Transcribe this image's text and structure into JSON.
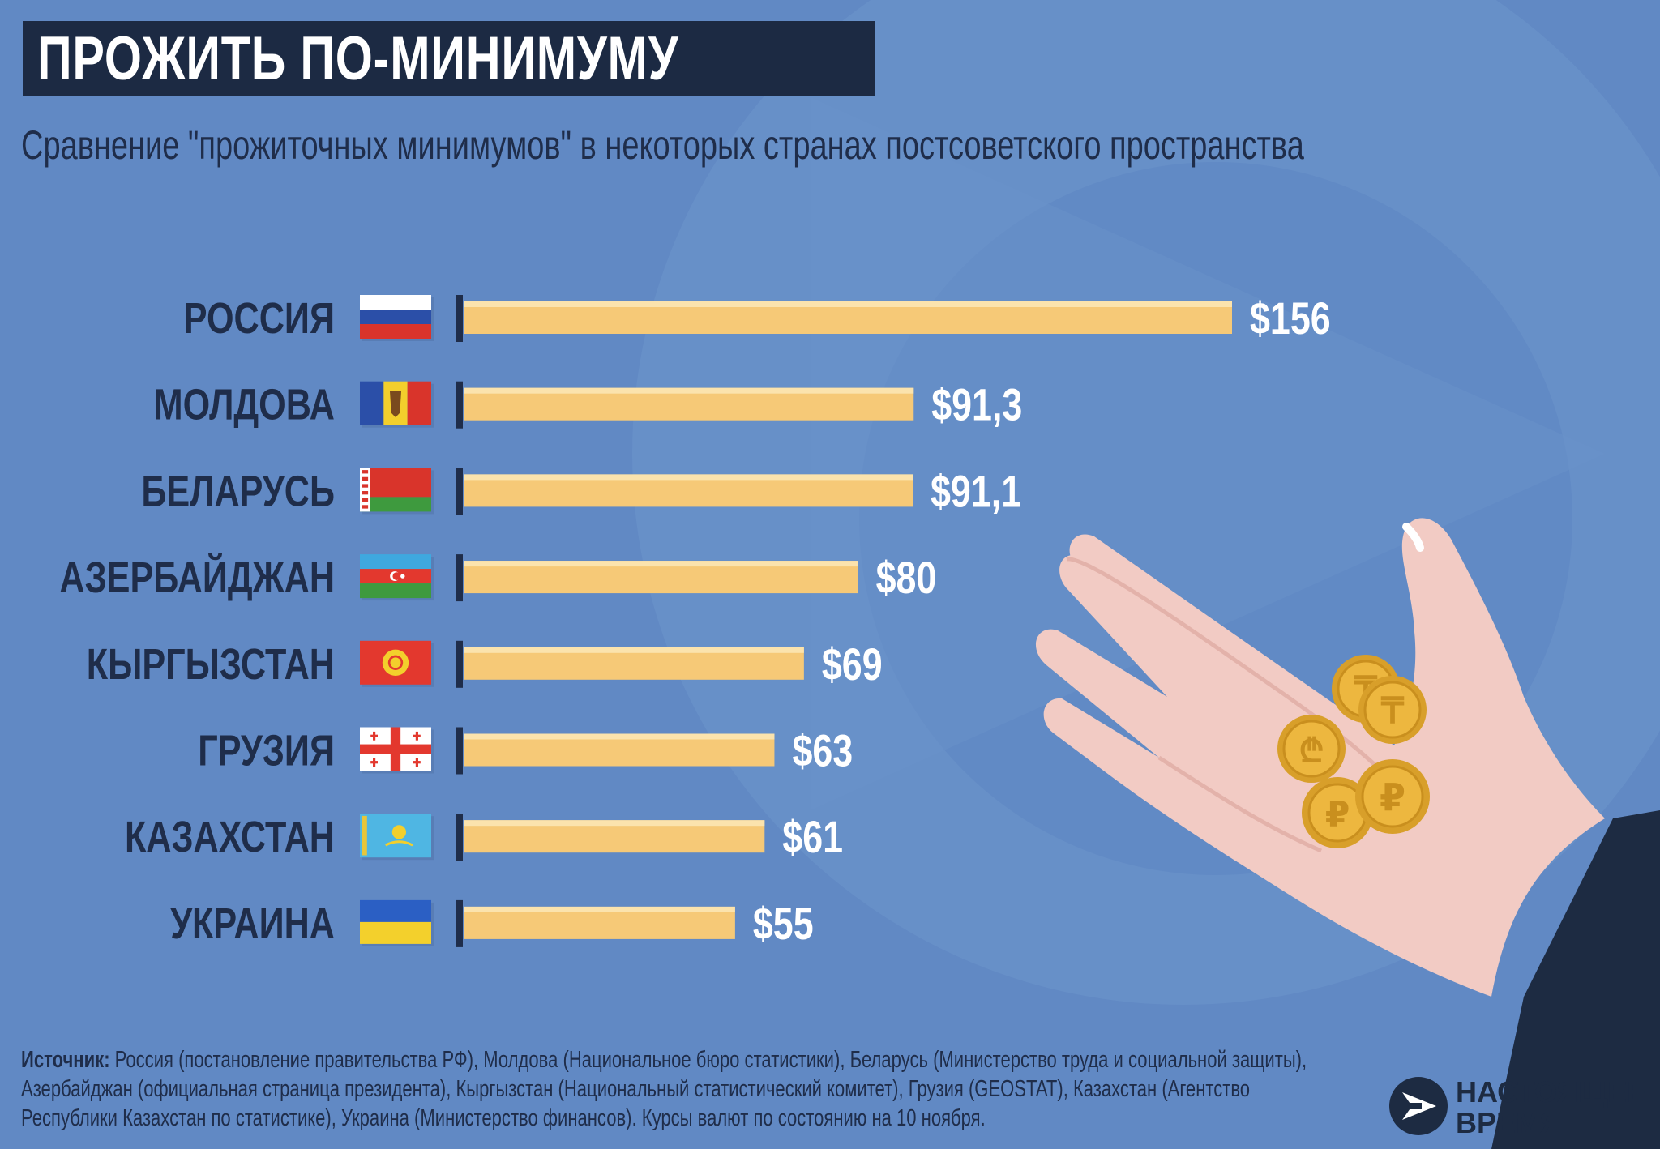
{
  "header": {
    "title": "ПРОЖИТЬ ПО-МИНИМУМУ",
    "subtitle": "Сравнение \"прожиточных минимумов\" в некоторых странах постсоветского пространства"
  },
  "chart_data": {
    "type": "bar",
    "orientation": "horizontal",
    "categories": [
      "РОССИЯ",
      "МОЛДОВА",
      "БЕЛАРУСЬ",
      "АЗЕРБАЙДЖАН",
      "КЫРГЫЗСТАН",
      "ГРУЗИЯ",
      "КАЗАХСТАН",
      "УКРАИНА"
    ],
    "values": [
      156,
      91.3,
      91.1,
      80,
      69,
      63,
      61,
      55
    ],
    "value_labels": [
      "$156",
      "$91,3",
      "$91,1",
      "$80",
      "$69",
      "$63",
      "$61",
      "$55"
    ],
    "flags": [
      "flag-russia",
      "flag-moldova",
      "flag-belarus",
      "flag-azerbaijan",
      "flag-kyrgyzstan",
      "flag-georgia",
      "flag-kazakhstan",
      "flag-ukraine"
    ],
    "xlim": [
      0,
      156
    ],
    "bar_color": "#f6c977",
    "grid": false
  },
  "footer": {
    "source_label": "Источник:",
    "source_text": " Россия (постановление правительства РФ), Молдова (Национальное бюро статистики), Беларусь (Министерство труда и социальной защиты), Азербайджан (официальная страница президента), Кыргызстан (Национальный статистический комитет), Грузия (GEOSTAT), Казахстан (Агентство Республики Казахстан по статистике), Украина (Министерство финансов). Курсы валют по состоянию на 10 ноября.",
    "logo_line1": "НАСТОЯЩЕЕ",
    "logo_line2": "ВРЕМЯ"
  },
  "colors": {
    "background": "#6189c4",
    "title_box": "#1c2a43",
    "text_dark": "#1f2d4a",
    "bar": "#f6c977",
    "coin": "#e9b23a"
  },
  "illustration": {
    "icons": [
      "hand-illustration",
      "coin-tenge-icon",
      "coin-lari-icon",
      "coin-ruble-icon"
    ]
  }
}
